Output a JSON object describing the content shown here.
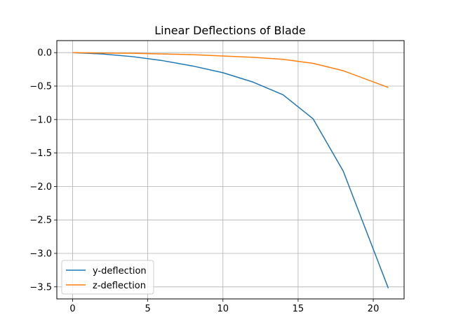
{
  "chart_data": {
    "type": "line",
    "title": "Linear Deflections of Blade",
    "xlabel": "",
    "ylabel": "",
    "xlim": [
      -1.05,
      22.05
    ],
    "ylim": [
      -3.68,
      0.18
    ],
    "x_ticks": [
      0,
      5,
      10,
      15,
      20
    ],
    "x_tick_labels": [
      "0",
      "5",
      "10",
      "15",
      "20"
    ],
    "y_ticks": [
      0.0,
      -0.5,
      -1.0,
      -1.5,
      -2.0,
      -2.5,
      -3.0,
      -3.5
    ],
    "y_tick_labels": [
      "0.0",
      "−0.5",
      "−1.0",
      "−1.5",
      "−2.0",
      "−2.5",
      "−3.0",
      "−3.5"
    ],
    "grid": true,
    "legend_position": "lower-left",
    "series": [
      {
        "name": "y-deflection",
        "color": "#1f77b4",
        "x": [
          0,
          2,
          4,
          6,
          8,
          10,
          12,
          14,
          16,
          18,
          21
        ],
        "y": [
          0.0,
          -0.02,
          -0.06,
          -0.12,
          -0.2,
          -0.3,
          -0.44,
          -0.63,
          -0.99,
          -1.77,
          -3.52
        ]
      },
      {
        "name": "z-deflection",
        "color": "#ff7f0e",
        "x": [
          0,
          2,
          4,
          6,
          8,
          10,
          12,
          14,
          16,
          18,
          21
        ],
        "y": [
          0.0,
          -0.005,
          -0.01,
          -0.02,
          -0.03,
          -0.05,
          -0.07,
          -0.1,
          -0.16,
          -0.27,
          -0.52
        ]
      }
    ]
  }
}
